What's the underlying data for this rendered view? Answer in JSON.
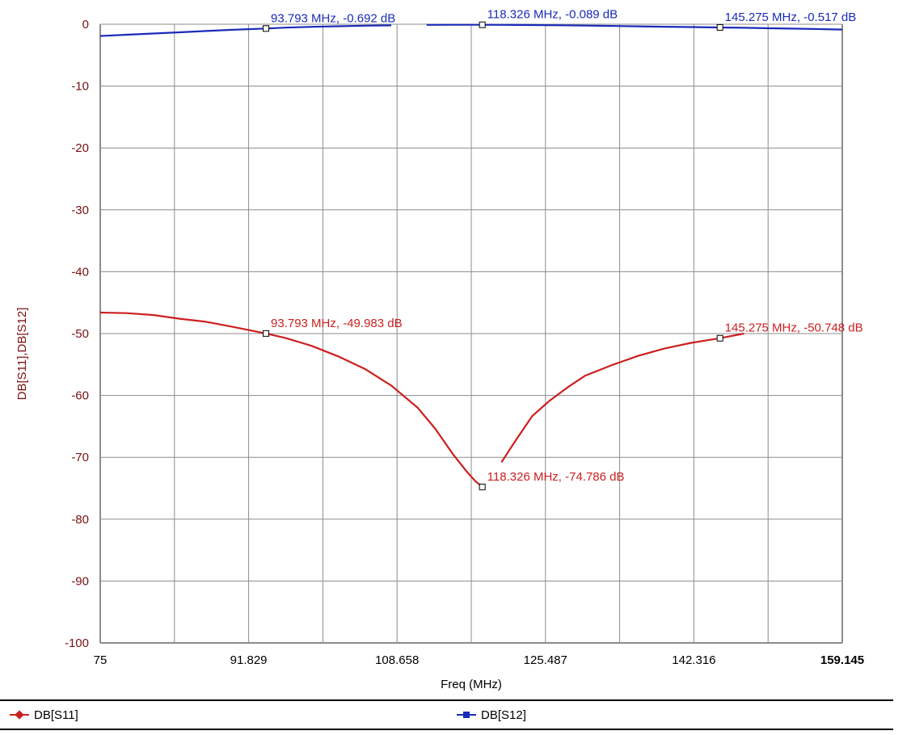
{
  "chart_data": {
    "type": "line",
    "xlabel": "Freq (MHz)",
    "ylabel": "DB[S11],DB[S12]",
    "xlim": [
      75,
      159.145
    ],
    "ylim": [
      -100,
      0
    ],
    "x_ticks": [
      "75",
      "91.829",
      "108.658",
      "125.487",
      "142.316",
      "159.145"
    ],
    "y_ticks": [
      "0",
      "-10",
      "-20",
      "-30",
      "-40",
      "-50",
      "-60",
      "-70",
      "-80",
      "-90",
      "-100"
    ],
    "grid": true,
    "legend_position": "bottom",
    "colors": {
      "s11": "#cc1f1f",
      "s12": "#1a2bb8",
      "grid": "#8c8c8c",
      "ytick": "#7a1010"
    },
    "series": [
      {
        "name": "DB[S11]",
        "color": "#cc1f1f",
        "segments": [
          {
            "x": [
              75,
              78,
              81,
              84,
              87,
              90,
              93.793,
              96,
              99,
              102,
              105,
              108,
              111,
              113,
              115,
              116.5,
              117.5,
              118.326
            ],
            "y": [
              -46.6,
              -46.7,
              -47.0,
              -47.6,
              -48.1,
              -48.9,
              -49.983,
              -50.7,
              -52.0,
              -53.7,
              -55.7,
              -58.4,
              -62.0,
              -65.4,
              -69.5,
              -72.2,
              -73.8,
              -74.786
            ]
          },
          {
            "x": [
              120.5,
              122,
              124,
              126,
              128,
              130,
              133,
              136,
              139,
              142,
              145.275,
              148
            ],
            "y": [
              -70.8,
              -67.5,
              -63.3,
              -60.8,
              -58.7,
              -56.8,
              -55.1,
              -53.6,
              -52.4,
              -51.5,
              -50.748,
              -50.0
            ]
          }
        ]
      },
      {
        "name": "DB[S12]",
        "color": "#1a2bb8",
        "segments": [
          {
            "x": [
              75,
              78,
              81,
              84,
              87,
              90,
              93.793,
              96,
              99,
              102,
              105,
              108
            ],
            "y": [
              -1.9,
              -1.7,
              -1.5,
              -1.3,
              -1.1,
              -0.9,
              -0.692,
              -0.55,
              -0.42,
              -0.32,
              -0.24,
              -0.18
            ]
          },
          {
            "x": [
              112,
              115,
              118.326,
              121,
              124,
              127,
              130,
              133,
              136,
              139,
              142,
              145.275,
              148,
              151,
              154,
              157,
              159.145
            ],
            "y": [
              -0.1,
              -0.09,
              -0.089,
              -0.1,
              -0.13,
              -0.17,
              -0.22,
              -0.28,
              -0.34,
              -0.4,
              -0.46,
              -0.517,
              -0.58,
              -0.65,
              -0.72,
              -0.8,
              -0.86
            ]
          }
        ]
      }
    ],
    "markers": [
      {
        "series": "DB[S12]",
        "x": 93.793,
        "y": -0.692,
        "label": "93.793 MHz, -0.692 dB",
        "anchor": "right-above"
      },
      {
        "series": "DB[S12]",
        "x": 118.326,
        "y": -0.089,
        "label": "118.326 MHz, -0.089 dB",
        "anchor": "right-above"
      },
      {
        "series": "DB[S12]",
        "x": 145.275,
        "y": -0.517,
        "label": "145.275 MHz, -0.517 dB",
        "anchor": "right-above"
      },
      {
        "series": "DB[S11]",
        "x": 93.793,
        "y": -49.983,
        "label": "93.793 MHz, -49.983 dB",
        "anchor": "right-above"
      },
      {
        "series": "DB[S11]",
        "x": 118.326,
        "y": -74.786,
        "label": "118.326 MHz, -74.786 dB",
        "anchor": "right-above"
      },
      {
        "series": "DB[S11]",
        "x": 145.275,
        "y": -50.748,
        "label": "145.275 MHz, -50.748 dB",
        "anchor": "right-above"
      }
    ]
  },
  "legend": {
    "items": [
      {
        "label": "DB[S11]",
        "color": "#cc1f1f",
        "marker": "diamond"
      },
      {
        "label": "DB[S12]",
        "color": "#1a2bb8",
        "marker": "square"
      }
    ]
  }
}
